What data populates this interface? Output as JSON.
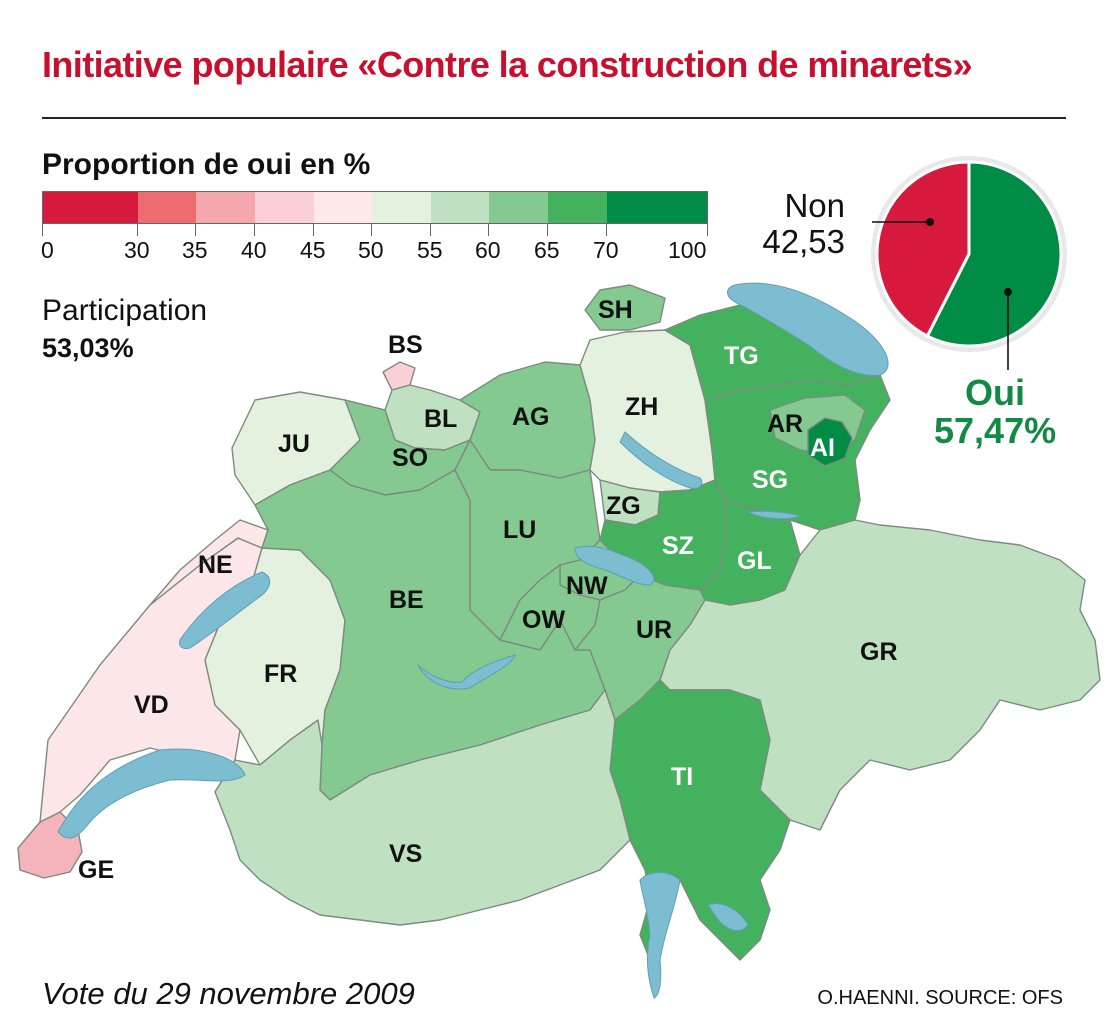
{
  "title": "Initiative populaire «Contre la construction de minarets»",
  "legend": {
    "title": "Proportion de oui en %",
    "ticks": [
      "0",
      "30",
      "35",
      "40",
      "45",
      "50",
      "55",
      "60",
      "65",
      "70",
      "100"
    ],
    "colors": [
      "#d7193e",
      "#ee6b6f",
      "#f5a8ae",
      "#fbcfd6",
      "#fde9ea",
      "#e4f1df",
      "#bfe0c1",
      "#84c98f",
      "#44b15e",
      "#008c45"
    ]
  },
  "participation": {
    "label": "Participation",
    "value": "53,03%"
  },
  "result": {
    "non_label": "Non",
    "non_value": "42,53",
    "non_color": "#d7193e",
    "oui_label": "Oui",
    "oui_value": "57,47%",
    "oui_color": "#008c45"
  },
  "cantons": {
    "SH": "SH",
    "BS": "BS",
    "TG": "TG",
    "BL": "BL",
    "AG": "AG",
    "ZH": "ZH",
    "JU": "JU",
    "AR": "AR",
    "AI": "AI",
    "SO": "SO",
    "SG": "SG",
    "ZG": "ZG",
    "LU": "LU",
    "SZ": "SZ",
    "NE": "NE",
    "GL": "GL",
    "NW": "NW",
    "BE": "BE",
    "OW": "OW",
    "UR": "UR",
    "GR": "GR",
    "FR": "FR",
    "VD": "VD",
    "TI": "TI",
    "VS": "VS",
    "GE": "GE"
  },
  "footer": {
    "date": "Vote du 29 novembre 2009",
    "source": "O.HAENNI. SOURCE: OFS"
  }
}
